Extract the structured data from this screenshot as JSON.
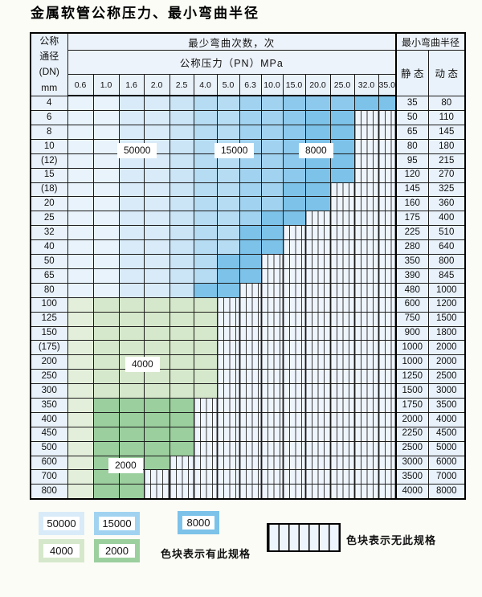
{
  "title": "金属软管公称压力、最小弯曲半径",
  "header": {
    "dn_label": "公称\n通径\n(DN)\nmm",
    "cycles_label": "最少弯曲次数，次",
    "pressure_label": "公称压力（PN）MPa",
    "radius_label": "最小弯曲半径",
    "static_label": "静 态",
    "dynamic_label": "动 态"
  },
  "pressures": [
    "0.6",
    "1.0",
    "1.6",
    "2.0",
    "2.5",
    "4.0",
    "5.0",
    "6.3",
    "10.0",
    "15.0",
    "20.0",
    "25.0",
    "32.0",
    "35.0"
  ],
  "rows": [
    {
      "dn": "4",
      "group": "blue",
      "last": 13,
      "static": "35",
      "dynamic": "80"
    },
    {
      "dn": "6",
      "group": "blue",
      "last": 11,
      "static": "50",
      "dynamic": "110"
    },
    {
      "dn": "8",
      "group": "blue",
      "last": 11,
      "static": "65",
      "dynamic": "145"
    },
    {
      "dn": "10",
      "group": "blue",
      "last": 11,
      "static": "80",
      "dynamic": "180"
    },
    {
      "dn": "(12)",
      "group": "blue",
      "last": 11,
      "static": "95",
      "dynamic": "215"
    },
    {
      "dn": "15",
      "group": "blue",
      "last": 11,
      "static": "120",
      "dynamic": "270"
    },
    {
      "dn": "(18)",
      "group": "blue",
      "last": 10,
      "static": "145",
      "dynamic": "325"
    },
    {
      "dn": "20",
      "group": "blue",
      "last": 10,
      "static": "160",
      "dynamic": "360"
    },
    {
      "dn": "25",
      "group": "blue",
      "last": 9,
      "static": "175",
      "dynamic": "400"
    },
    {
      "dn": "32",
      "group": "blue",
      "last": 8,
      "static": "225",
      "dynamic": "510"
    },
    {
      "dn": "40",
      "group": "blue",
      "last": 8,
      "static": "280",
      "dynamic": "640"
    },
    {
      "dn": "50",
      "group": "blue",
      "last": 7,
      "static": "350",
      "dynamic": "800"
    },
    {
      "dn": "65",
      "group": "blue",
      "last": 7,
      "static": "390",
      "dynamic": "845"
    },
    {
      "dn": "80",
      "group": "blue",
      "last": 6,
      "static": "480",
      "dynamic": "1000"
    },
    {
      "dn": "100",
      "group": "green_light",
      "last": 5,
      "static": "600",
      "dynamic": "1200"
    },
    {
      "dn": "125",
      "group": "green_light",
      "last": 5,
      "static": "750",
      "dynamic": "1500"
    },
    {
      "dn": "150",
      "group": "green_light",
      "last": 5,
      "static": "900",
      "dynamic": "1800"
    },
    {
      "dn": "(175)",
      "group": "green_light",
      "last": 5,
      "static": "1000",
      "dynamic": "2000"
    },
    {
      "dn": "200",
      "group": "green_light",
      "last": 5,
      "static": "1000",
      "dynamic": "2000"
    },
    {
      "dn": "250",
      "group": "green_light",
      "last": 5,
      "static": "1250",
      "dynamic": "2500"
    },
    {
      "dn": "300",
      "group": "green_light",
      "last": 5,
      "static": "1500",
      "dynamic": "3000"
    },
    {
      "dn": "350",
      "group": "green_dark",
      "last": 4,
      "static": "1750",
      "dynamic": "3500"
    },
    {
      "dn": "400",
      "group": "green_dark",
      "last": 4,
      "static": "2000",
      "dynamic": "4000"
    },
    {
      "dn": "450",
      "group": "green_dark",
      "last": 4,
      "static": "2250",
      "dynamic": "4500"
    },
    {
      "dn": "500",
      "group": "green_dark",
      "last": 4,
      "static": "2500",
      "dynamic": "5000"
    },
    {
      "dn": "600",
      "group": "green_dark",
      "last": 3,
      "static": "3000",
      "dynamic": "6000"
    },
    {
      "dn": "700",
      "group": "green_dark",
      "last": 2,
      "static": "3500",
      "dynamic": "7000"
    },
    {
      "dn": "800",
      "group": "green_dark",
      "last": 2,
      "static": "4000",
      "dynamic": "8000"
    }
  ],
  "shade_by_column": {
    "blue": [
      "b1",
      "b1",
      "b2",
      "b2",
      "b3",
      "b4",
      "b4",
      "b5",
      "b5",
      "b6",
      "b6",
      "b6",
      "b6",
      "b6"
    ],
    "green_light": [
      "g1",
      "g2",
      "g2",
      "g2",
      "g2",
      "g2",
      "g2",
      "g2",
      "g2",
      "g2",
      "g2",
      "g2",
      "g2",
      "g2"
    ],
    "green_dark": [
      "g1",
      "g3",
      "g3",
      "g3",
      "g3",
      "g3",
      "g3",
      "g3",
      "g3",
      "g3",
      "g3",
      "g3",
      "g3",
      "g3"
    ]
  },
  "colors": {
    "b1": "#e8f3fb",
    "b2": "#d9ebf8",
    "b3": "#cbe4f6",
    "b4": "#b6dcf3",
    "b5": "#a1d3f0",
    "b6": "#8dc9ed",
    "b7": "#7cc2e9",
    "g1": "#e4efdb",
    "g2": "#d6e8cb",
    "g3": "#9bcf9e",
    "hatch_bg": "#eef5fc",
    "hatch_line": "#3c3c3c",
    "row_header_bg": "#e9f2fa",
    "header_bg": "#edf3fa",
    "grid_line": "#1b1b1b"
  },
  "zone_labels": [
    {
      "text": "50000"
    },
    {
      "text": "15000"
    },
    {
      "text": "8000"
    },
    {
      "text": "4000"
    },
    {
      "text": "2000"
    }
  ],
  "legend": {
    "items": [
      {
        "label": "50000",
        "color_key": "b2"
      },
      {
        "label": "15000",
        "color_key": "b5"
      },
      {
        "label": "8000",
        "color_key": "b7"
      },
      {
        "label": "4000",
        "color_key": "g2"
      },
      {
        "label": "2000",
        "color_key": "g3"
      }
    ],
    "note_available": "色块表示有此规格",
    "note_unavailable": "色块表示无此规格"
  }
}
